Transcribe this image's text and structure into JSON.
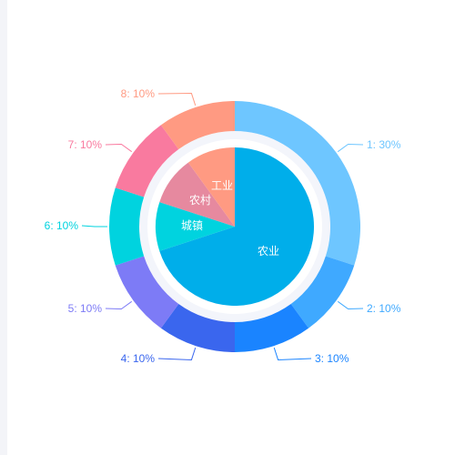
{
  "chart_data": [
    {
      "type": "pie",
      "name": "outer-ring",
      "slices": [
        {
          "label": "1",
          "value": 30,
          "display": "1: 30%",
          "color": "#6ec6ff"
        },
        {
          "label": "2",
          "value": 10,
          "display": "2: 10%",
          "color": "#3fa9ff"
        },
        {
          "label": "3",
          "value": 10,
          "display": "3: 10%",
          "color": "#1a84ff"
        },
        {
          "label": "4",
          "value": 10,
          "display": "4: 10%",
          "color": "#3a66ee"
        },
        {
          "label": "5",
          "value": 10,
          "display": "5: 10%",
          "color": "#7d7bf6"
        },
        {
          "label": "6",
          "value": 10,
          "display": "6: 10%",
          "color": "#00d3df"
        },
        {
          "label": "7",
          "value": 10,
          "display": "7: 10%",
          "color": "#f97a9f"
        },
        {
          "label": "8",
          "value": 10,
          "display": "8: 10%",
          "color": "#ff9a82"
        }
      ]
    },
    {
      "type": "pie",
      "name": "inner-pie",
      "slices": [
        {
          "label": "农业",
          "value": 70,
          "color": "#00aeea"
        },
        {
          "label": "城镇",
          "value": 10,
          "color": "#00d3df"
        },
        {
          "label": "农村",
          "value": 10,
          "color": "#e6899f"
        },
        {
          "label": "工业",
          "value": 10,
          "color": "#ff9a82"
        }
      ]
    }
  ],
  "colors": {
    "ring_background": "#f3f5fb",
    "side_strip": "#f3f4f8"
  }
}
